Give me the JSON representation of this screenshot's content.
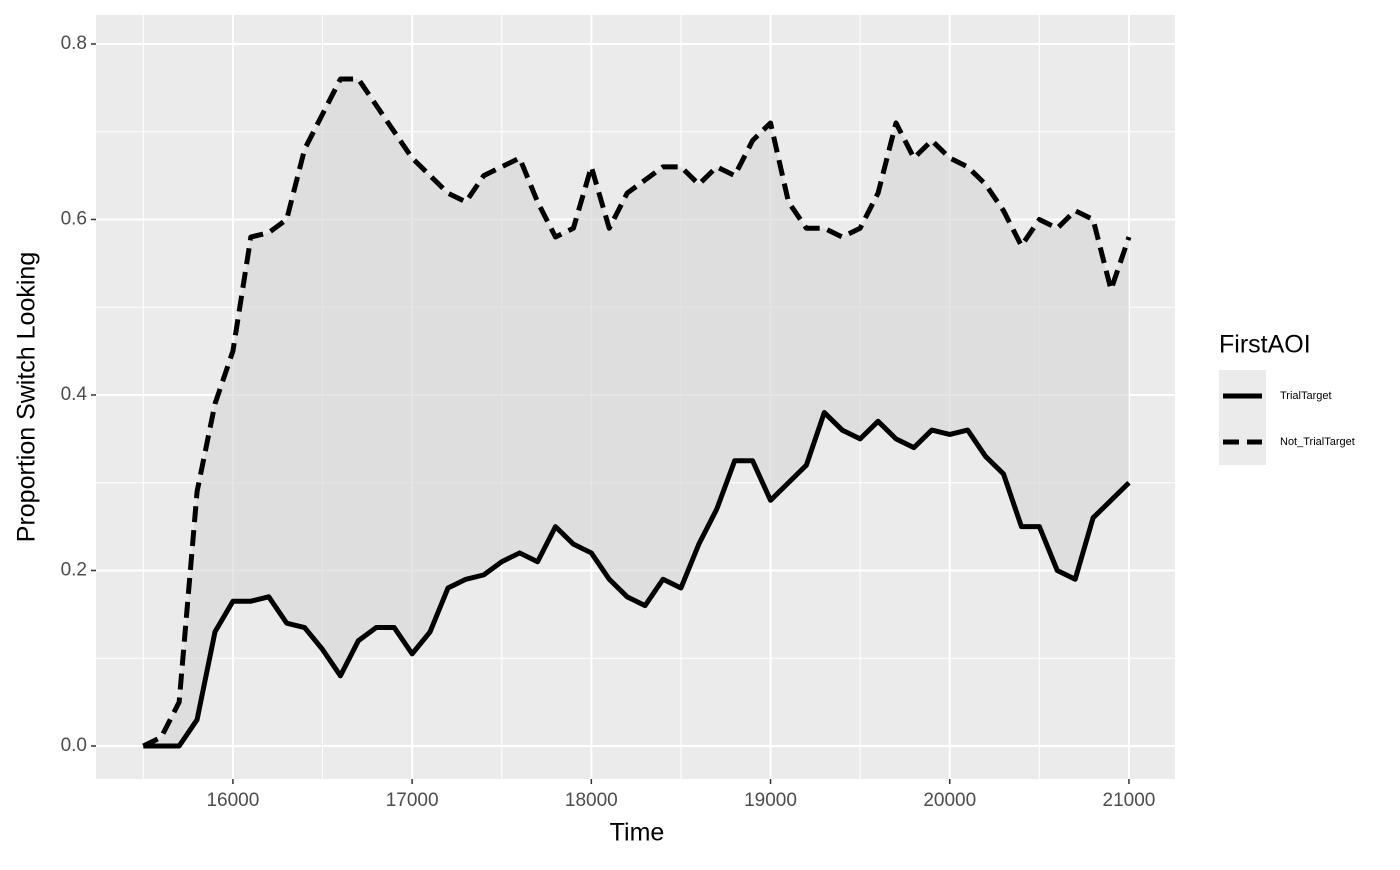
{
  "chart_data": {
    "type": "line",
    "x_label": "Time",
    "y_label": "Proportion Switch Looking",
    "legend_title": "FirstAOI",
    "legend_position": "right",
    "x": [
      15500,
      15600,
      15700,
      15800,
      15900,
      16000,
      16100,
      16200,
      16300,
      16400,
      16500,
      16600,
      16700,
      16800,
      16900,
      17000,
      17100,
      17200,
      17300,
      17400,
      17500,
      17600,
      17700,
      17800,
      17900,
      18000,
      18100,
      18200,
      18300,
      18400,
      18500,
      18600,
      18700,
      18800,
      18900,
      19000,
      19100,
      19200,
      19300,
      19400,
      19500,
      19600,
      19700,
      19800,
      19900,
      20000,
      20100,
      20200,
      20300,
      20400,
      20500,
      20600,
      20700,
      20800,
      20900,
      21000
    ],
    "series": [
      {
        "name": "TrialTarget",
        "color": "#000000",
        "linestyle": "solid",
        "values": [
          0,
          0,
          0,
          0.03,
          0.13,
          0.165,
          0.165,
          0.17,
          0.14,
          0.135,
          0.11,
          0.08,
          0.12,
          0.135,
          0.135,
          0.105,
          0.13,
          0.18,
          0.19,
          0.195,
          0.21,
          0.22,
          0.21,
          0.25,
          0.23,
          0.22,
          0.19,
          0.17,
          0.16,
          0.19,
          0.18,
          0.23,
          0.27,
          0.325,
          0.325,
          0.28,
          0.3,
          0.32,
          0.38,
          0.36,
          0.35,
          0.37,
          0.35,
          0.34,
          0.36,
          0.355,
          0.36,
          0.33,
          0.31,
          0.25,
          0.25,
          0.2,
          0.19,
          0.26,
          0.28,
          0.3
        ]
      },
      {
        "name": "Not_TrialTarget",
        "color": "#000000",
        "linestyle": "dashed",
        "values": [
          0,
          0.01,
          0.05,
          0.29,
          0.39,
          0.45,
          0.58,
          0.585,
          0.6,
          0.68,
          0.72,
          0.76,
          0.76,
          0.73,
          0.7,
          0.67,
          0.65,
          0.63,
          0.62,
          0.65,
          0.66,
          0.67,
          0.62,
          0.58,
          0.59,
          0.66,
          0.59,
          0.63,
          0.645,
          0.66,
          0.66,
          0.64,
          0.66,
          0.65,
          0.69,
          0.71,
          0.62,
          0.59,
          0.59,
          0.58,
          0.59,
          0.63,
          0.71,
          0.67,
          0.69,
          0.67,
          0.66,
          0.64,
          0.61,
          0.57,
          0.6,
          0.59,
          0.61,
          0.6,
          0.52,
          0.58
        ]
      }
    ],
    "ribbon_color": "#d9d9d9",
    "xlim": [
      15236,
      21257
    ],
    "ylim": [
      -0.0376,
      0.833
    ],
    "xticks": [
      16000,
      17000,
      18000,
      19000,
      20000,
      21000
    ],
    "yticks": [
      {
        "value": 0,
        "label": "0.0"
      },
      0.2,
      0.4,
      0.6,
      0.8
    ],
    "grid": true
  }
}
